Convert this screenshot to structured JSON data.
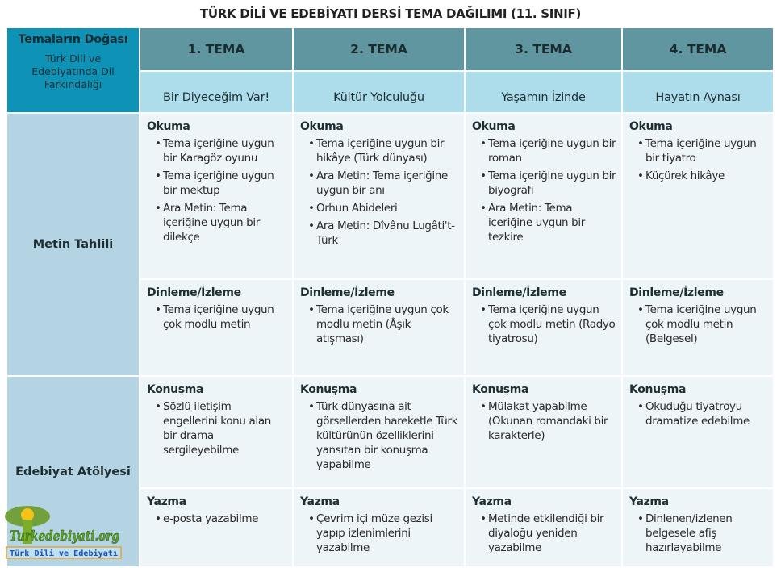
{
  "title": "TÜRK DİLİ VE EDEBİYATI DERSİ TEMA DAĞILIMI (11. SINIF)",
  "corner": {
    "heading": "Temaların Doğası",
    "subtitle": "Türk Dili ve Edebiyatında Dil Farkındalığı"
  },
  "themes": [
    {
      "number": "1. TEMA",
      "name": "Bir Diyeceğim Var!"
    },
    {
      "number": "2. TEMA",
      "name": "Kültür Yolculuğu"
    },
    {
      "number": "3. TEMA",
      "name": "Yaşamın İzinde"
    },
    {
      "number": "4. TEMA",
      "name": "Hayatın Aynası"
    }
  ],
  "sections": [
    {
      "label": "Metin Tahlili",
      "rows": [
        {
          "skill": "Okuma",
          "cells": [
            [
              "Tema içeriğine uygun bir Karagöz oyunu",
              "Tema içeriğine uygun bir mektup",
              "Ara Metin: Tema içeriğine uygun bir dilekçe"
            ],
            [
              "Tema içeriğine uygun bir hikâye (Türk dünyası)",
              "Ara Metin: Tema içeriğine uygun bir anı",
              "Orhun Abideleri",
              "Ara Metin: Dîvânu Lugâti't-Türk"
            ],
            [
              "Tema içeriğine uygun bir roman",
              "Tema içeriğine uygun bir biyografi",
              "Ara Metin: Tema içeriğine uygun bir tezkire"
            ],
            [
              "Tema içeriğine uygun bir tiyatro",
              "Küçürek hikâye"
            ]
          ]
        },
        {
          "skill": "Dinleme/İzleme",
          "cells": [
            [
              "Tema içeriğine uygun çok modlu metin"
            ],
            [
              "Tema içeriğine uygun çok modlu metin (Âşık atışması)"
            ],
            [
              "Tema içeriğine uygun çok modlu metin (Radyo tiyatrosu)"
            ],
            [
              "Tema içeriğine uygun çok modlu metin (Belgesel)"
            ]
          ]
        }
      ]
    },
    {
      "label": "Edebiyat Atölyesi",
      "rows": [
        {
          "skill": "Konuşma",
          "cells": [
            [
              "Sözlü iletişim engellerini konu alan bir drama sergileyebilme"
            ],
            [
              "Türk dünyasına ait görsellerden hareketle Türk kültürünün özelliklerini yansıtan bir konuşma yapabilme"
            ],
            [
              "Mülakat yapabilme (Okunan romandaki bir karakterle)"
            ],
            [
              "Okuduğu tiyatroyu dramatize edebilme"
            ]
          ]
        },
        {
          "skill": "Yazma",
          "cells": [
            [
              "e-posta yazabilme"
            ],
            [
              "Çevrim içi müze gezisi yapıp izlenimlerini yazabilme"
            ],
            [
              "Metinde etkilendiği bir diyaloğu yeniden yazabilme"
            ],
            [
              "Dinlenen/izlenen belgesele afiş hazırlayabilme"
            ]
          ]
        }
      ]
    }
  ],
  "logo": {
    "text": "Turkedebiyati.org",
    "tagline": "Türk Dili ve Edebiyatı"
  },
  "colors": {
    "corner": "#0e93b6",
    "theme_header": "#5f96a0",
    "theme_name": "#addcea",
    "section": "#b4d4e3",
    "cell": "#eef5f8"
  }
}
